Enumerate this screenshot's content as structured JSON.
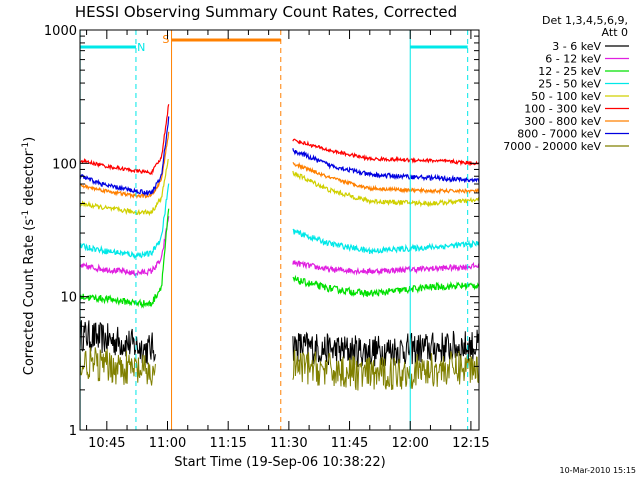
{
  "chart_data": {
    "type": "line",
    "title": "HESSI Observing Summary Count Rates, Corrected",
    "xlabel": "Start Time (19-Sep-06 10:38:22)",
    "ylabel_main": "Corrected Count Rate (s",
    "ylabel_sup1": "-1",
    "ylabel_mid": " detector",
    "ylabel_sup2": "-1",
    "ylabel_end": ")",
    "yscale": "log",
    "ylim": [
      1,
      1000
    ],
    "xlim_min": [
      38.37,
      137.0
    ],
    "y_ticks": [
      {
        "value": 1,
        "label": "1"
      },
      {
        "value": 10,
        "label": "10"
      },
      {
        "value": 100,
        "label": "100"
      },
      {
        "value": 1000,
        "label": "1000"
      }
    ],
    "x_ticks": [
      {
        "value": 45,
        "label": "10:45"
      },
      {
        "value": 60,
        "label": "11:00"
      },
      {
        "value": 75,
        "label": "11:15"
      },
      {
        "value": 90,
        "label": "11:30"
      },
      {
        "value": 105,
        "label": "11:45"
      },
      {
        "value": 120,
        "label": "12:00"
      },
      {
        "value": 135,
        "label": "12:15"
      }
    ],
    "legend_header": [
      "Det 1,3,4,5,6,9,",
      "Att 0"
    ],
    "series": [
      {
        "name": "3 - 6 keV",
        "color": "#000000",
        "noise": 0.28,
        "seg1": [
          [
            38.4,
            5.2
          ],
          [
            50,
            4.5
          ],
          [
            55,
            4.0
          ],
          [
            57,
            4.2
          ]
        ],
        "seg2": [
          [
            91,
            4.3
          ],
          [
            100,
            4.0
          ],
          [
            110,
            3.9
          ],
          [
            137,
            4.3
          ]
        ]
      },
      {
        "name": "6 - 12 keV",
        "color": "#e020e0",
        "noise": 0.05,
        "seg1": [
          [
            38.4,
            17
          ],
          [
            45,
            16
          ],
          [
            52,
            15
          ],
          [
            56,
            15.5
          ],
          [
            58.5,
            19
          ],
          [
            60.3,
            40
          ]
        ],
        "seg2": [
          [
            91,
            18
          ],
          [
            100,
            16
          ],
          [
            110,
            15.5
          ],
          [
            130,
            16.5
          ],
          [
            137,
            17
          ]
        ]
      },
      {
        "name": "12 - 25 keV",
        "color": "#00e000",
        "noise": 0.06,
        "seg1": [
          [
            38.4,
            10
          ],
          [
            45,
            9.6
          ],
          [
            52,
            9
          ],
          [
            56,
            8.8
          ],
          [
            58.5,
            12
          ],
          [
            60.3,
            45
          ]
        ],
        "seg2": [
          [
            91,
            13.5
          ],
          [
            100,
            11.5
          ],
          [
            110,
            10.5
          ],
          [
            125,
            11.8
          ],
          [
            137,
            12.2
          ]
        ]
      },
      {
        "name": "25 - 50 keV",
        "color": "#00e8e8",
        "noise": 0.05,
        "seg1": [
          [
            38.4,
            24
          ],
          [
            45,
            22
          ],
          [
            52,
            20.5
          ],
          [
            56,
            21
          ],
          [
            58.5,
            28
          ],
          [
            60.3,
            70
          ]
        ],
        "seg2": [
          [
            91,
            31
          ],
          [
            100,
            25
          ],
          [
            110,
            22
          ],
          [
            125,
            23.5
          ],
          [
            137,
            25
          ]
        ]
      },
      {
        "name": "50 - 100 keV",
        "color": "#d0d000",
        "noise": 0.04,
        "seg1": [
          [
            38.4,
            50
          ],
          [
            45,
            46
          ],
          [
            52,
            43
          ],
          [
            56,
            43
          ],
          [
            58.5,
            55
          ],
          [
            60.3,
            110
          ]
        ],
        "seg2": [
          [
            91,
            85
          ],
          [
            100,
            63
          ],
          [
            110,
            52
          ],
          [
            125,
            50
          ],
          [
            137,
            53
          ]
        ]
      },
      {
        "name": "100 - 300 keV",
        "color": "#ff0000",
        "noise": 0.03,
        "seg1": [
          [
            38.4,
            105
          ],
          [
            45,
            95
          ],
          [
            52,
            88
          ],
          [
            56,
            85
          ],
          [
            58.5,
            110
          ],
          [
            60.3,
            280
          ]
        ],
        "seg2": [
          [
            91,
            150
          ],
          [
            100,
            125
          ],
          [
            110,
            108
          ],
          [
            125,
            105
          ],
          [
            137,
            100
          ]
        ]
      },
      {
        "name": "300 - 800 keV",
        "color": "#ff8000",
        "noise": 0.03,
        "seg1": [
          [
            38.4,
            68
          ],
          [
            45,
            62
          ],
          [
            52,
            57
          ],
          [
            56,
            57
          ],
          [
            58.5,
            75
          ],
          [
            60.3,
            170
          ]
        ],
        "seg2": [
          [
            91,
            100
          ],
          [
            100,
            78
          ],
          [
            110,
            65
          ],
          [
            125,
            62
          ],
          [
            137,
            62
          ]
        ]
      },
      {
        "name": "800 - 7000 keV",
        "color": "#0000e0",
        "noise": 0.04,
        "seg1": [
          [
            38.4,
            80
          ],
          [
            45,
            68
          ],
          [
            52,
            62
          ],
          [
            56,
            60
          ],
          [
            58.5,
            80
          ],
          [
            60.3,
            220
          ]
        ],
        "seg2": [
          [
            91,
            125
          ],
          [
            100,
            97
          ],
          [
            110,
            82
          ],
          [
            125,
            78
          ],
          [
            137,
            74
          ]
        ]
      },
      {
        "name": "7000 - 20000 keV",
        "color": "#808000",
        "noise": 0.3,
        "seg1": [
          [
            38.4,
            3.2
          ],
          [
            50,
            2.9
          ],
          [
            57,
            2.6
          ]
        ],
        "seg2": [
          [
            91,
            3.0
          ],
          [
            110,
            2.6
          ],
          [
            137,
            3.0
          ]
        ]
      }
    ],
    "flags": {
      "saa_label": "S",
      "night_label": "N",
      "saa_color": "#ff8000",
      "night_color": "#00e8e8"
    },
    "footer_date": "10-Mar-2010 15:15"
  }
}
